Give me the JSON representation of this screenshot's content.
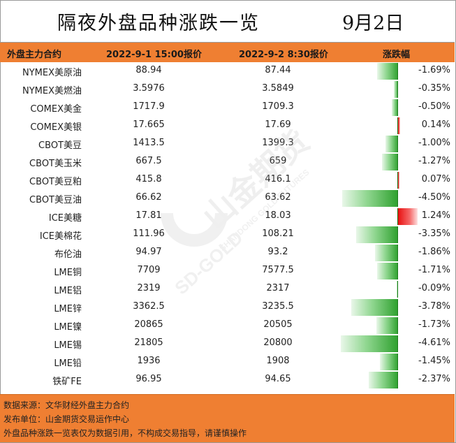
{
  "title": "隔夜外盘品种涨跌一览",
  "date": "9月2日",
  "header": {
    "col_name": "外盘主力合约",
    "col_price1": "2022-9-1 15:00报价",
    "col_price2": "2022-9-2 8:30报价",
    "col_change": "涨跌幅"
  },
  "rows": [
    {
      "name": "NYMEX美原油",
      "p1": "88.94",
      "p2": "87.44",
      "chg": "-1.69%",
      "value": -1.69
    },
    {
      "name": "NYMEX美燃油",
      "p1": "3.5976",
      "p2": "3.5849",
      "chg": "-0.35%",
      "value": -0.35
    },
    {
      "name": "COMEX美金",
      "p1": "1717.9",
      "p2": "1709.3",
      "chg": "-0.50%",
      "value": -0.5
    },
    {
      "name": "COMEX美银",
      "p1": "17.665",
      "p2": "17.69",
      "chg": "0.14%",
      "value": 0.14
    },
    {
      "name": "CBOT美豆",
      "p1": "1413.5",
      "p2": "1399.3",
      "chg": "-1.00%",
      "value": -1.0
    },
    {
      "name": "CBOT美玉米",
      "p1": "667.5",
      "p2": "659",
      "chg": "-1.27%",
      "value": -1.27
    },
    {
      "name": "CBOT美豆粕",
      "p1": "415.8",
      "p2": "416.1",
      "chg": "0.07%",
      "value": 0.07
    },
    {
      "name": "CBOT美豆油",
      "p1": "66.62",
      "p2": "63.62",
      "chg": "-4.50%",
      "value": -4.5
    },
    {
      "name": "ICE美糖",
      "p1": "17.81",
      "p2": "18.03",
      "chg": "1.24%",
      "value": 1.24
    },
    {
      "name": "ICE美棉花",
      "p1": "111.96",
      "p2": "108.21",
      "chg": "-3.35%",
      "value": -3.35
    },
    {
      "name": "布伦油",
      "p1": "94.97",
      "p2": "93.2",
      "chg": "-1.86%",
      "value": -1.86
    },
    {
      "name": "LME铜",
      "p1": "7709",
      "p2": "7577.5",
      "chg": "-1.71%",
      "value": -1.71
    },
    {
      "name": "LME铝",
      "p1": "2319",
      "p2": "2317",
      "chg": "-0.09%",
      "value": -0.09
    },
    {
      "name": "LME锌",
      "p1": "3362.5",
      "p2": "3235.5",
      "chg": "-3.78%",
      "value": -3.78
    },
    {
      "name": "LME镍",
      "p1": "20865",
      "p2": "20505",
      "chg": "-1.73%",
      "value": -1.73
    },
    {
      "name": "LME锡",
      "p1": "21805",
      "p2": "20800",
      "chg": "-4.61%",
      "value": -4.61
    },
    {
      "name": "LME铅",
      "p1": "1936",
      "p2": "1908",
      "chg": "-1.45%",
      "value": -1.45
    },
    {
      "name": "铁矿FE",
      "p1": "96.95",
      "p2": "94.65",
      "chg": "-2.37%",
      "value": -2.37
    }
  ],
  "footer": {
    "source": "数据来源：文华财经外盘主力合约",
    "publisher": "发布单位：山金期货交易运作中心",
    "disclaimer": "外盘品种涨跌一览表仅为数据引用，不构成交易指导，请谨慎操作"
  },
  "watermark": {
    "brand_cn": "山金期货",
    "brand_en": "SHANDONG GOLD FUTURES",
    "logo_text": "SD-GOLD"
  },
  "colors": {
    "header_bg": "#ef7f32",
    "negative_bar": "#2ea02e",
    "positive_bar": "#e81010"
  }
}
